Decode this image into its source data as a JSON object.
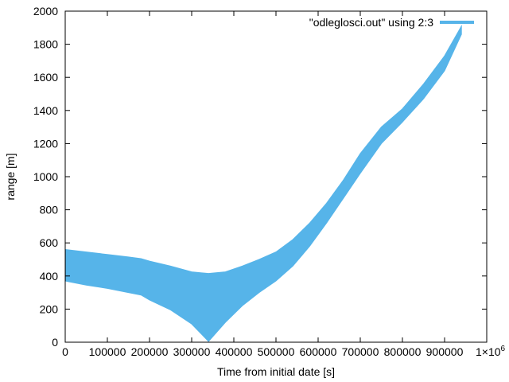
{
  "chart_data": {
    "type": "area",
    "title": "",
    "xlabel": "Time from initial date [s]",
    "ylabel": "range [m]",
    "xlim": [
      0,
      1000000
    ],
    "ylim": [
      0,
      2000
    ],
    "x_ticks": [
      0,
      100000,
      200000,
      300000,
      400000,
      500000,
      600000,
      700000,
      800000,
      900000
    ],
    "x_tick_labels": [
      "0",
      "100000",
      "200000",
      "300000",
      "400000",
      "500000",
      "600000",
      "700000",
      "800000",
      "900000"
    ],
    "x_multiplier_label": "1×10",
    "x_multiplier_exponent": "6",
    "y_ticks": [
      0,
      200,
      400,
      600,
      800,
      1000,
      1200,
      1400,
      1600,
      1800,
      2000
    ],
    "y_tick_labels": [
      "0",
      "200",
      "400",
      "600",
      "800",
      "1000",
      "1200",
      "1400",
      "1600",
      "1800",
      "2000"
    ],
    "grid": false,
    "legend_position": "top-right",
    "series": [
      {
        "name": "\"odleglosci.out\" using 2:3",
        "color": "#56b4e9",
        "description_of_band": "rapidly oscillating range; upper and lower envelopes",
        "x": [
          0,
          50000,
          100000,
          150000,
          180000,
          200000,
          250000,
          300000,
          340000,
          380000,
          420000,
          460000,
          500000,
          540000,
          580000,
          620000,
          660000,
          700000,
          750000,
          800000,
          850000,
          900000,
          940000
        ],
        "upper": [
          560,
          545,
          530,
          515,
          505,
          490,
          460,
          425,
          415,
          425,
          460,
          500,
          545,
          620,
          720,
          840,
          980,
          1140,
          1300,
          1410,
          1560,
          1730,
          1910
        ],
        "lower": [
          370,
          345,
          325,
          300,
          285,
          255,
          195,
          110,
          5,
          120,
          220,
          300,
          370,
          460,
          580,
          720,
          870,
          1020,
          1200,
          1330,
          1470,
          1640,
          1860
        ]
      }
    ]
  }
}
